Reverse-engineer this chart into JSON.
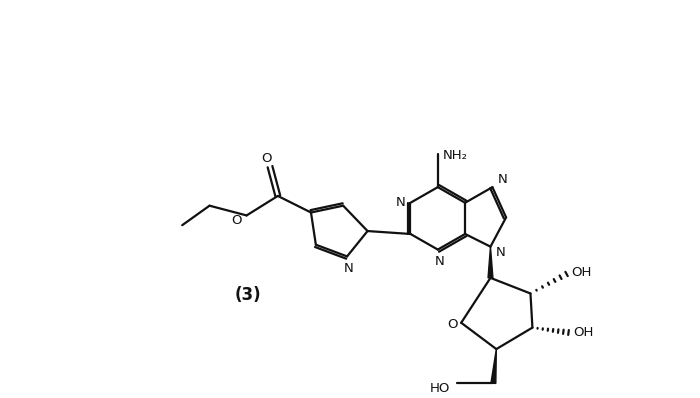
{
  "background_color": "#ffffff",
  "line_color": "#111111",
  "line_width": 1.6,
  "label_fontsize": 9.5,
  "figure_width": 7.0,
  "figure_height": 3.98,
  "dpi": 100,
  "label_NH2": "NH₂",
  "label_OH1": "OH",
  "label_OH2": "OH",
  "label_HO": "HO",
  "label_O_carbonyl": "O",
  "label_O_ring": "O",
  "label_compound": "(3)"
}
